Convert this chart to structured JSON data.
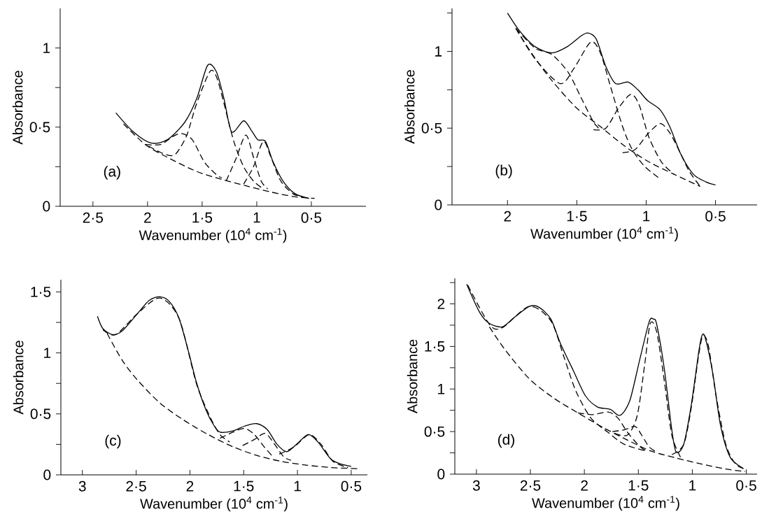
{
  "chart_data": [
    {
      "type": "line",
      "xlabel": "Wavenumber  (10$^{4}$ cm$^{-1}$)",
      "ylabel": "Absorbance",
      "annotations": [
        "(a)"
      ],
      "color": "#000000",
      "xlim": [
        2.8,
        0
      ],
      "ylim": [
        0,
        1.25
      ],
      "xticks": [
        {
          "value": 2.5,
          "label": "2·5"
        },
        2,
        {
          "value": 1.5,
          "label": "1·5"
        },
        1,
        {
          "value": 0.5,
          "label": "0·5"
        }
      ],
      "yticks": [
        0,
        {
          "value": 0.25,
          "label": null
        },
        {
          "value": 0.5,
          "label": "0·5"
        },
        {
          "value": 0.75,
          "label": null
        },
        1
      ],
      "series": [
        {
          "line_style": "solid",
          "x": [
            2.29,
            2.13,
            1.97,
            1.82,
            1.66,
            1.55,
            1.45,
            1.37,
            1.3,
            1.23,
            1.12,
            1.05,
            0.99,
            0.92,
            0.85,
            0.76,
            0.65,
            0.52
          ],
          "values": [
            0.59,
            0.47,
            0.4,
            0.42,
            0.53,
            0.68,
            0.89,
            0.85,
            0.68,
            0.47,
            0.54,
            0.48,
            0.42,
            0.41,
            0.28,
            0.16,
            0.08,
            0.05
          ]
        },
        {
          "line_style": "dashed",
          "x": [
            2.22,
            2.02,
            1.82,
            1.55,
            1.32,
            1.1,
            0.87,
            0.65,
            0.47
          ],
          "values": [
            0.52,
            0.39,
            0.31,
            0.22,
            0.17,
            0.13,
            0.09,
            0.06,
            0.05
          ]
        },
        {
          "line_style": "dashed",
          "x": [
            2.02,
            1.88,
            1.77,
            1.69,
            1.59,
            1.48,
            1.37,
            1.32
          ],
          "values": [
            0.39,
            0.39,
            0.44,
            0.46,
            0.42,
            0.28,
            0.2,
            0.18
          ]
        },
        {
          "line_style": "dashed",
          "x": [
            1.99,
            1.88,
            1.79,
            1.73,
            1.64,
            1.55,
            1.43,
            1.37,
            1.3,
            1.21,
            1.12,
            1.03,
            0.94
          ],
          "values": [
            0.38,
            0.34,
            0.32,
            0.34,
            0.45,
            0.65,
            0.85,
            0.82,
            0.65,
            0.41,
            0.25,
            0.16,
            0.11
          ]
        },
        {
          "line_style": "dashed",
          "x": [
            1.28,
            1.19,
            1.1,
            1.03,
            0.96,
            0.9
          ],
          "values": [
            0.16,
            0.3,
            0.45,
            0.31,
            0.16,
            0.11
          ]
        },
        {
          "line_style": "dashed",
          "x": [
            1.12,
            1.03,
            0.94,
            0.87,
            0.78,
            0.67,
            0.58
          ],
          "values": [
            0.14,
            0.25,
            0.41,
            0.31,
            0.16,
            0.08,
            0.06
          ]
        }
      ]
    },
    {
      "type": "line",
      "xlabel": "Wavenumber  (10$^{4}$ cm$^{-1}$)",
      "ylabel": "Absorbance",
      "annotations": [
        "(b)"
      ],
      "color": "#000000",
      "xlim": [
        2.4,
        0.2
      ],
      "ylim": [
        0,
        1.28
      ],
      "xticks": [
        2,
        {
          "value": 1.5,
          "label": "1·5"
        },
        1,
        {
          "value": 0.5,
          "label": "0·5"
        }
      ],
      "yticks": [
        0,
        {
          "value": 0.25,
          "label": null
        },
        {
          "value": 0.5,
          "label": "0·5"
        },
        {
          "value": 0.75,
          "label": null
        },
        1,
        {
          "value": 1.25,
          "label": null
        }
      ],
      "series": [
        {
          "line_style": "solid",
          "x": [
            2.0,
            1.91,
            1.8,
            1.68,
            1.57,
            1.47,
            1.42,
            1.36,
            1.29,
            1.22,
            1.13,
            1.06,
            0.99,
            0.9,
            0.83,
            0.75,
            0.66,
            0.57,
            0.5
          ],
          "values": [
            1.25,
            1.13,
            1.03,
            0.99,
            1.03,
            1.1,
            1.12,
            1.08,
            0.9,
            0.79,
            0.8,
            0.75,
            0.68,
            0.62,
            0.51,
            0.33,
            0.2,
            0.15,
            0.13
          ]
        },
        {
          "line_style": "dashed",
          "x": [
            1.94,
            1.82,
            1.68,
            1.5,
            1.33,
            1.15,
            0.98,
            0.8,
            0.61
          ],
          "values": [
            1.15,
            0.98,
            0.81,
            0.63,
            0.51,
            0.38,
            0.28,
            0.2,
            0.12
          ]
        },
        {
          "line_style": "dashed",
          "x": [
            1.94,
            1.8,
            1.68,
            1.56,
            1.47,
            1.38,
            1.33
          ],
          "values": [
            1.15,
            1.02,
            0.98,
            0.86,
            0.7,
            0.54,
            0.49
          ]
        },
        {
          "line_style": "dashed",
          "x": [
            1.94,
            1.8,
            1.62,
            1.52,
            1.4,
            1.33,
            1.26,
            1.17,
            1.1,
            1.01,
            0.9
          ],
          "values": [
            1.15,
            0.95,
            0.79,
            0.89,
            1.06,
            0.99,
            0.78,
            0.51,
            0.36,
            0.25,
            0.17
          ]
        },
        {
          "line_style": "dashed",
          "x": [
            1.38,
            1.29,
            1.2,
            1.11,
            1.05,
            0.98,
            0.89,
            0.8
          ],
          "values": [
            0.49,
            0.5,
            0.63,
            0.72,
            0.65,
            0.44,
            0.28,
            0.2
          ]
        },
        {
          "line_style": "dashed",
          "x": [
            1.17,
            1.08,
            0.99,
            0.9,
            0.83,
            0.76,
            0.69,
            0.61
          ],
          "values": [
            0.34,
            0.36,
            0.46,
            0.53,
            0.47,
            0.35,
            0.22,
            0.12
          ]
        }
      ]
    },
    {
      "type": "line",
      "xlabel": "Wavenumber  (10$^{4}$ cm$^{-1}$)",
      "ylabel": "Absorbance",
      "annotations": [
        "(c)"
      ],
      "color": "#000000",
      "xlim": [
        3.2,
        0.35
      ],
      "ylim": [
        0,
        1.6
      ],
      "xticks": [
        3,
        {
          "value": 2.5,
          "label": "2·5"
        },
        2,
        {
          "value": 1.5,
          "label": "1·5"
        },
        1,
        {
          "value": 0.5,
          "label": "0·5"
        }
      ],
      "yticks": [
        0,
        {
          "value": 0.25,
          "label": null
        },
        {
          "value": 0.5,
          "label": "0·5"
        },
        {
          "value": 0.75,
          "label": null
        },
        1,
        {
          "value": 1.25,
          "label": null
        },
        {
          "value": 1.5,
          "label": "1·5"
        }
      ],
      "series": [
        {
          "line_style": "solid",
          "x": [
            2.86,
            2.81,
            2.72,
            2.63,
            2.49,
            2.38,
            2.28,
            2.19,
            2.1,
            2.01,
            1.94,
            1.85,
            1.78,
            1.72,
            1.6,
            1.49,
            1.38,
            1.28,
            1.19,
            1.1,
            1.01,
            0.9,
            0.81,
            0.69,
            0.6,
            0.5
          ],
          "values": [
            1.3,
            1.2,
            1.15,
            1.18,
            1.32,
            1.43,
            1.46,
            1.42,
            1.28,
            1.0,
            0.76,
            0.53,
            0.41,
            0.35,
            0.36,
            0.4,
            0.42,
            0.37,
            0.25,
            0.19,
            0.25,
            0.33,
            0.27,
            0.13,
            0.09,
            0.07
          ]
        },
        {
          "line_style": "dashed",
          "x": [
            2.77,
            2.63,
            2.49,
            2.28,
            2.06,
            1.83,
            1.6,
            1.38,
            1.15,
            0.92,
            0.69,
            0.43
          ],
          "values": [
            1.16,
            0.94,
            0.78,
            0.59,
            0.45,
            0.33,
            0.23,
            0.16,
            0.11,
            0.08,
            0.06,
            0.05
          ]
        },
        {
          "line_style": "dashed",
          "x": [
            2.81,
            2.69,
            2.49,
            2.28,
            2.1,
            1.94,
            1.81,
            1.72,
            1.63
          ],
          "values": [
            1.19,
            1.15,
            1.32,
            1.45,
            1.28,
            0.75,
            0.47,
            0.33,
            0.27
          ]
        },
        {
          "line_style": "dashed",
          "x": [
            1.72,
            1.6,
            1.49,
            1.4,
            1.31,
            1.24
          ],
          "values": [
            0.3,
            0.35,
            0.38,
            0.33,
            0.23,
            0.16
          ]
        },
        {
          "line_style": "dashed",
          "x": [
            1.51,
            1.4,
            1.3,
            1.22,
            1.13,
            1.06
          ],
          "values": [
            0.24,
            0.29,
            0.34,
            0.26,
            0.15,
            0.12
          ]
        },
        {
          "line_style": "dashed",
          "x": [
            1.17,
            1.03,
            0.89,
            0.78,
            0.67,
            0.53
          ],
          "values": [
            0.17,
            0.23,
            0.33,
            0.25,
            0.11,
            0.06
          ]
        }
      ]
    },
    {
      "type": "line",
      "xlabel": "Wavenumber  (10$^{4}$ cm$^{-1}$)",
      "ylabel": "Absorbance",
      "annotations": [
        "(d)"
      ],
      "color": "#000000",
      "xlim": [
        3.2,
        0.4
      ],
      "ylim": [
        0,
        2.3
      ],
      "xticks": [
        3,
        {
          "value": 2.5,
          "label": "2·5"
        },
        2,
        {
          "value": 1.5,
          "label": "1·5"
        },
        1,
        {
          "value": 0.5,
          "label": "0·5"
        }
      ],
      "yticks": [
        0,
        {
          "value": 0.25,
          "label": null
        },
        {
          "value": 0.5,
          "label": "0·5"
        },
        {
          "value": 0.75,
          "label": null
        },
        1,
        {
          "value": 1.25,
          "label": null
        },
        {
          "value": 1.5,
          "label": "1·5"
        },
        {
          "value": 1.75,
          "label": null
        },
        2,
        {
          "value": 2.25,
          "label": null
        }
      ],
      "series": [
        {
          "line_style": "solid",
          "x": [
            3.09,
            2.97,
            2.88,
            2.76,
            2.65,
            2.51,
            2.42,
            2.31,
            2.22,
            2.1,
            1.99,
            1.88,
            1.76,
            1.67,
            1.58,
            1.49,
            1.4,
            1.36,
            1.33,
            1.26,
            1.19,
            1.15,
            1.08,
            1.01,
            0.94,
            0.91,
            0.88,
            0.81,
            0.74,
            0.65,
            0.53
          ],
          "values": [
            2.23,
            1.9,
            1.77,
            1.73,
            1.84,
            1.97,
            1.96,
            1.82,
            1.53,
            1.21,
            0.92,
            0.79,
            0.76,
            0.69,
            0.86,
            1.33,
            1.79,
            1.82,
            1.76,
            1.24,
            0.52,
            0.26,
            0.35,
            0.81,
            1.44,
            1.63,
            1.6,
            1.18,
            0.58,
            0.2,
            0.07
          ]
        },
        {
          "line_style": "dashed",
          "x": [
            2.88,
            2.74,
            2.51,
            2.28,
            2.06,
            1.83,
            1.6,
            1.38,
            1.15,
            0.92,
            0.69,
            0.51
          ],
          "values": [
            1.73,
            1.47,
            1.12,
            0.89,
            0.72,
            0.55,
            0.4,
            0.27,
            0.19,
            0.12,
            0.06,
            0.03
          ]
        },
        {
          "line_style": "dashed",
          "x": [
            3.08,
            2.88,
            2.76,
            2.51,
            2.31,
            2.19,
            2.08,
            1.94,
            1.78,
            1.63,
            1.42
          ],
          "values": [
            2.22,
            1.76,
            1.72,
            1.97,
            1.8,
            1.38,
            0.98,
            0.66,
            0.49,
            0.35,
            0.27
          ]
        },
        {
          "line_style": "dashed",
          "x": [
            2.06,
            1.92,
            1.78,
            1.69,
            1.6,
            1.49,
            1.42
          ],
          "values": [
            0.72,
            0.7,
            0.73,
            0.66,
            0.49,
            0.33,
            0.27
          ]
        },
        {
          "line_style": "dashed",
          "x": [
            1.74,
            1.63,
            1.53,
            1.47,
            1.4,
            1.33
          ],
          "values": [
            0.5,
            0.52,
            0.56,
            0.46,
            0.32,
            0.26
          ]
        },
        {
          "line_style": "dashed",
          "x": [
            1.72,
            1.6,
            1.51,
            1.44,
            1.39,
            1.33,
            1.26,
            1.19,
            1.11
          ],
          "values": [
            0.48,
            0.46,
            0.69,
            1.3,
            1.77,
            1.67,
            1.1,
            0.46,
            0.2
          ]
        },
        {
          "line_style": "dashed",
          "x": [
            1.19,
            1.08,
            1.01,
            0.94,
            0.9,
            0.85,
            0.78,
            0.69,
            0.6,
            0.51
          ],
          "values": [
            0.23,
            0.35,
            0.78,
            1.41,
            1.63,
            1.5,
            0.92,
            0.35,
            0.12,
            0.06
          ]
        }
      ]
    }
  ]
}
